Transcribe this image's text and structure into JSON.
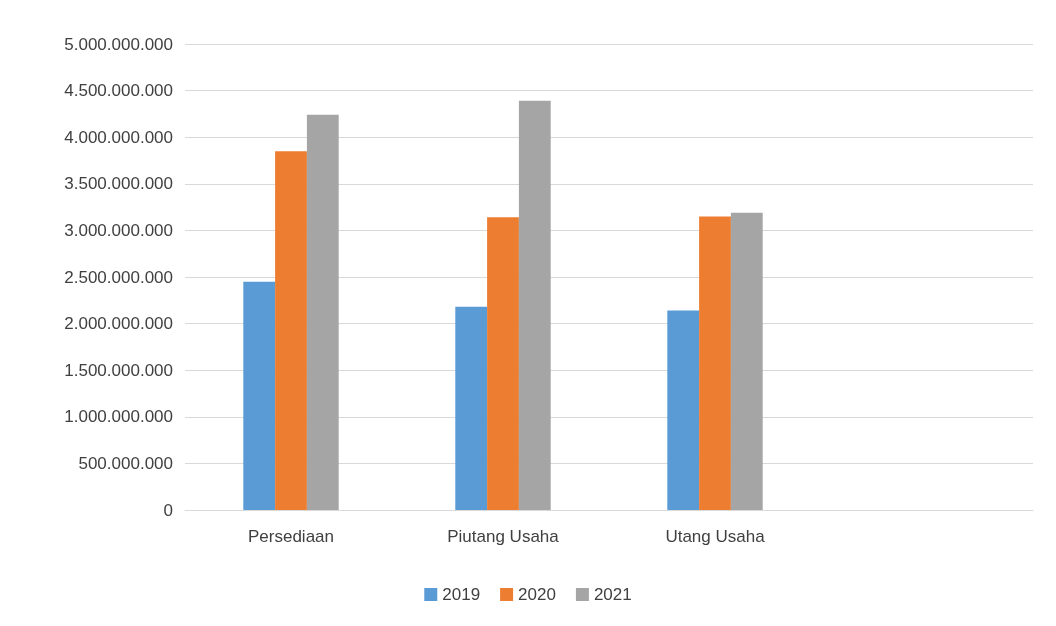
{
  "chart_data": {
    "type": "bar",
    "categories": [
      "Persediaan",
      "Piutang Usaha",
      "Utang Usaha",
      null
    ],
    "series": [
      {
        "name": "2019",
        "color": "#5b9bd5",
        "values": [
          2450000000,
          2180000000,
          2140000000,
          null
        ]
      },
      {
        "name": "2020",
        "color": "#ed7d31",
        "values": [
          3850000000,
          3140000000,
          3150000000,
          null
        ]
      },
      {
        "name": "2021",
        "color": "#a5a5a5",
        "values": [
          4240000000,
          4390000000,
          3190000000,
          null
        ]
      }
    ],
    "ylim": [
      0,
      5000000000
    ],
    "yticks": [
      0,
      {
        "value": 500000000,
        "label": "500.000.000"
      },
      {
        "value": 1000000000,
        "label": "1.000.000.000"
      },
      {
        "value": 1500000000,
        "label": "1.500.000.000"
      },
      {
        "value": 2000000000,
        "label": "2.000.000.000"
      },
      {
        "value": 2500000000,
        "label": "2.500.000.000"
      },
      {
        "value": 3000000000,
        "label": "3.000.000.000"
      },
      {
        "value": 3500000000,
        "label": "3.500.000.000"
      },
      {
        "value": 4000000000,
        "label": "4.000.000.000"
      },
      {
        "value": 4500000000,
        "label": "4.500.000.000"
      },
      {
        "value": 5000000000,
        "label": "5.000.000.000"
      }
    ],
    "grid": "y",
    "legend": "bottom"
  }
}
